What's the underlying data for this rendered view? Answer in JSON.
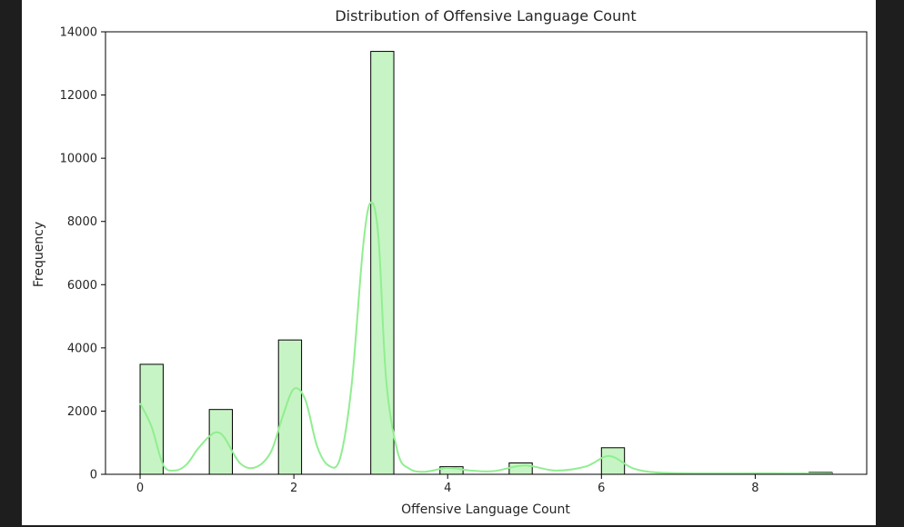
{
  "chart_data": {
    "type": "bar",
    "title": "Distribution of Offensive Language Count",
    "xlabel": "Offensive Language Count",
    "ylabel": "Frequency",
    "xlim": [
      -0.45,
      9.45
    ],
    "ylim": [
      0,
      14000
    ],
    "xticks": [
      0,
      2,
      4,
      6,
      8
    ],
    "yticks": [
      0,
      2000,
      4000,
      6000,
      8000,
      10000,
      12000,
      14000
    ],
    "bin_width": 0.3,
    "bins": [
      {
        "start": 0.0,
        "value": 3480
      },
      {
        "start": 0.9,
        "value": 2050
      },
      {
        "start": 1.8,
        "value": 4250
      },
      {
        "start": 3.0,
        "value": 13380
      },
      {
        "start": 3.9,
        "value": 240
      },
      {
        "start": 4.8,
        "value": 360
      },
      {
        "start": 6.0,
        "value": 840
      },
      {
        "start": 8.7,
        "value": 60
      }
    ],
    "kde": {
      "x": [
        0,
        0.15,
        0.3,
        0.45,
        0.6,
        0.75,
        0.9,
        1.0,
        1.1,
        1.3,
        1.5,
        1.7,
        1.85,
        2.0,
        2.15,
        2.3,
        2.45,
        2.6,
        2.75,
        2.9,
        3.0,
        3.1,
        3.2,
        3.35,
        3.5,
        3.7,
        4.0,
        4.3,
        4.6,
        5.0,
        5.4,
        5.8,
        6.1,
        6.4,
        6.7,
        7.2,
        7.8,
        8.4,
        9.0
      ],
      "y": [
        2250,
        1500,
        300,
        120,
        300,
        800,
        1200,
        1330,
        1150,
        350,
        220,
        700,
        1800,
        2700,
        2350,
        900,
        280,
        500,
        2800,
        7200,
        8600,
        7500,
        3000,
        700,
        180,
        80,
        200,
        120,
        100,
        280,
        120,
        250,
        580,
        200,
        60,
        30,
        30,
        30,
        20
      ]
    },
    "colors": {
      "bar_fill": "#c7f4c4",
      "bar_edge": "#000000",
      "kde_line": "#90ee90"
    },
    "grid": false,
    "legend": "none"
  }
}
